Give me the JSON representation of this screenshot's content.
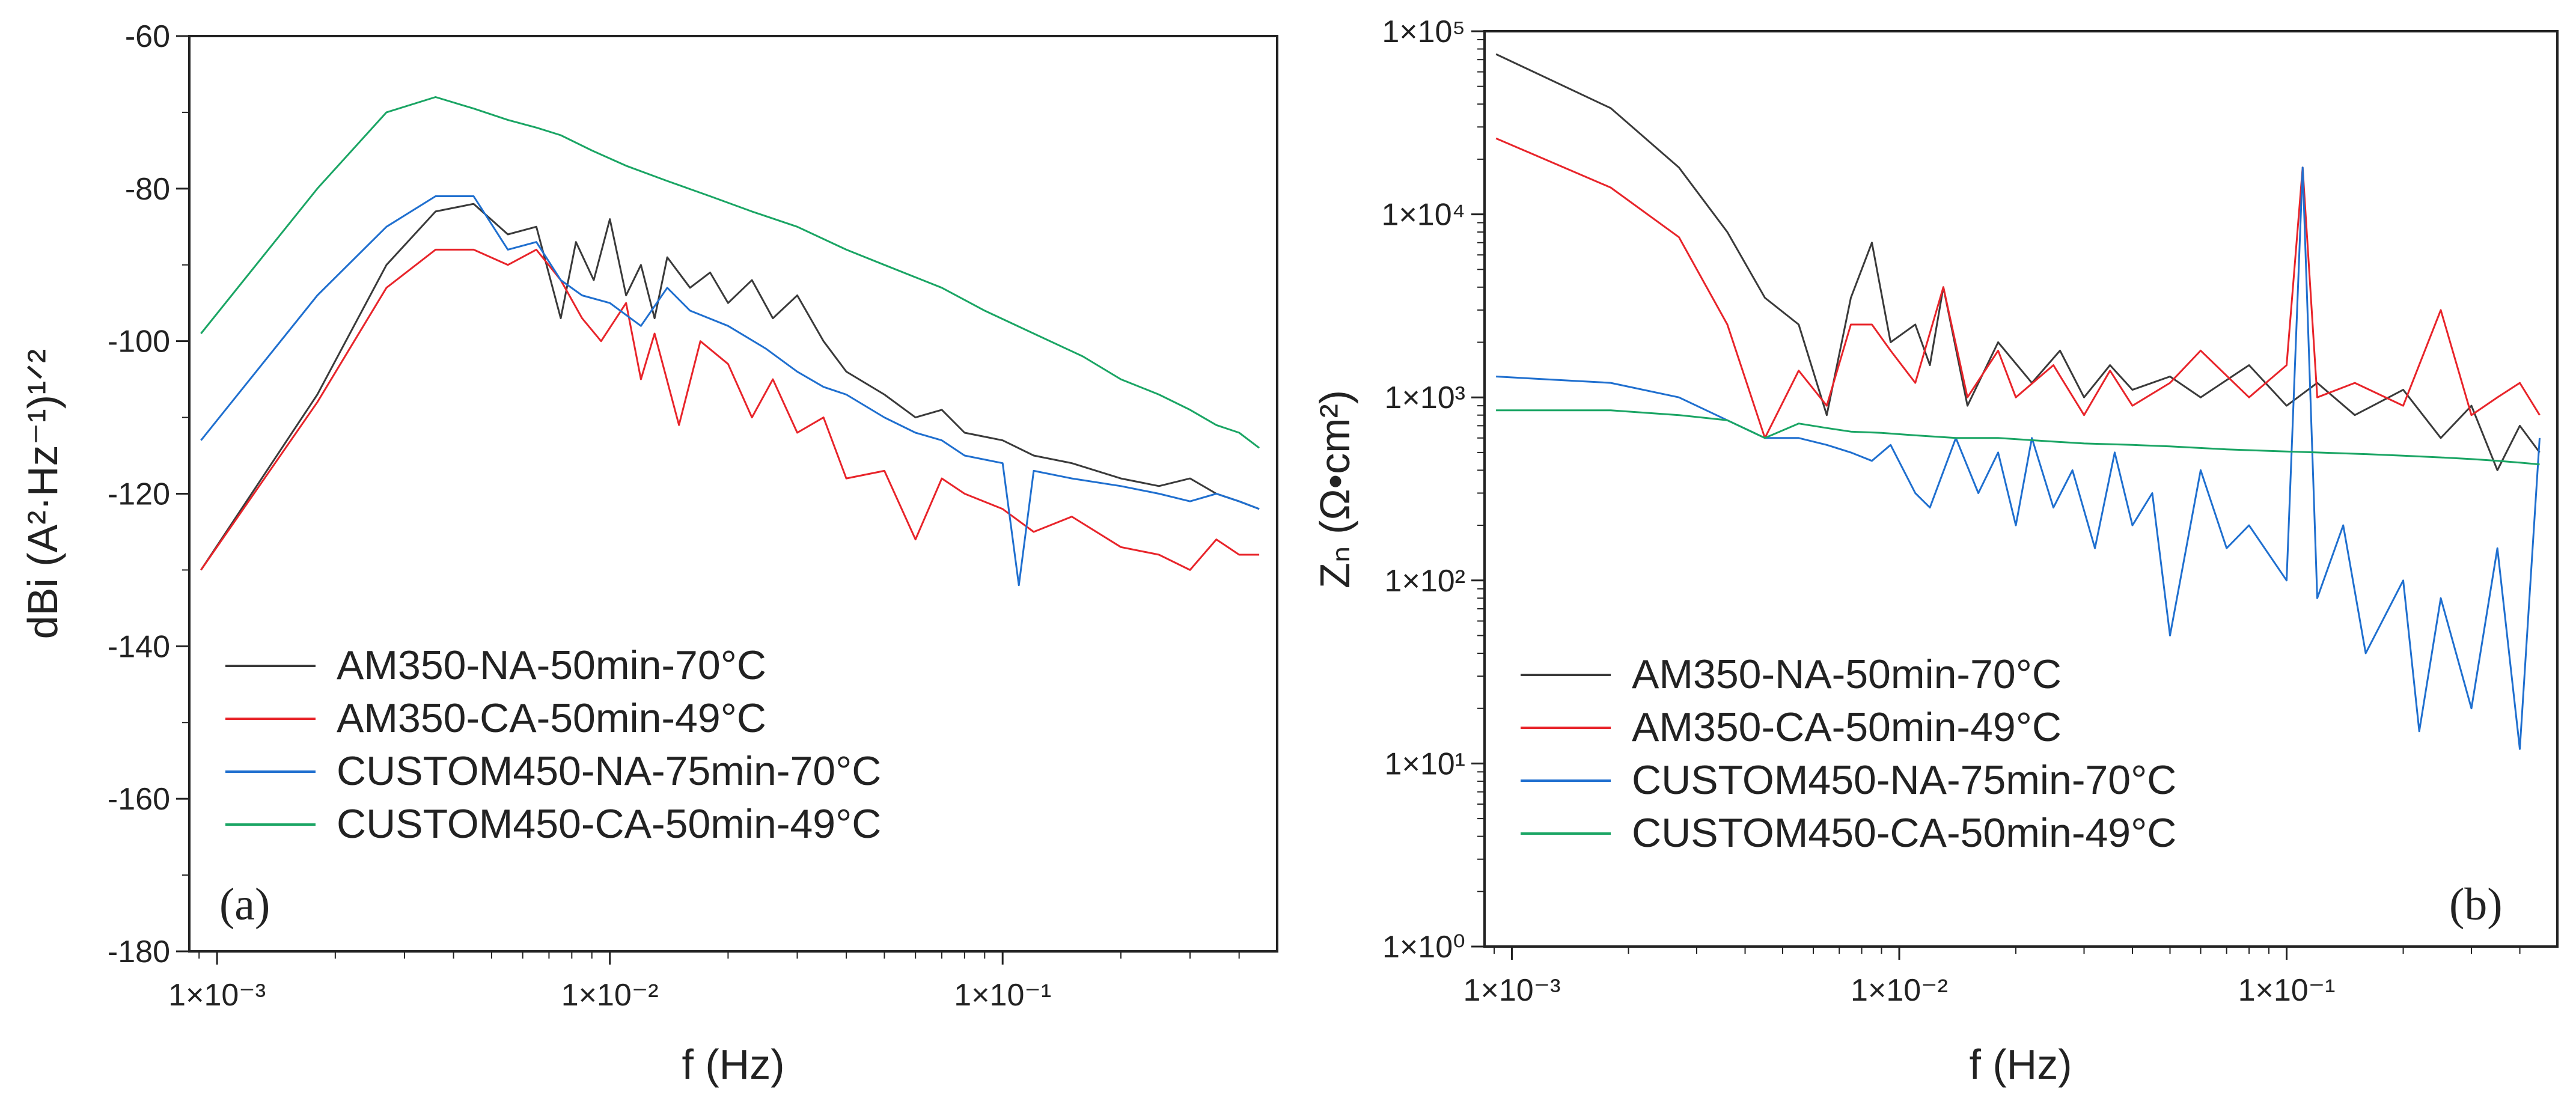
{
  "colors": {
    "AM350-NA-50min-70°C": "#3a3a3a",
    "AM350-CA-50min-49°C": "#e8242a",
    "CUSTOM450-NA-75min-70°C": "#1f6fcf",
    "CUSTOM450-CA-50min-49°C": "#1aa564"
  },
  "chart_data": [
    {
      "type": "line",
      "panel_label": "(a)",
      "xlabel": "f (Hz)",
      "ylabel": "dBi (A²·Hz⁻¹)¹ᐟ²",
      "xscale": "log",
      "xlim": [
        0.00085,
        0.5
      ],
      "ylim": [
        -180,
        -60
      ],
      "x_ticks": [
        0.001,
        0.01,
        0.1
      ],
      "x_tick_labels": [
        "1×10⁻³",
        "1×10⁻²",
        "1×10⁻¹"
      ],
      "y_ticks": [
        -180,
        -160,
        -140,
        -120,
        -100,
        -80,
        -60
      ],
      "y_tick_labels": [
        "-180",
        "-160",
        "-140",
        "-120",
        "-100",
        "-80",
        "-60"
      ],
      "legend_position": "bottom-left",
      "series": [
        {
          "name": "AM350-NA-50min-70°C",
          "x": [
            0.00091,
            0.0018,
            0.0027,
            0.0036,
            0.0045,
            0.0055,
            0.0065,
            0.0075,
            0.0082,
            0.0091,
            0.01,
            0.011,
            0.012,
            0.013,
            0.014,
            0.016,
            0.018,
            0.02,
            0.023,
            0.026,
            0.03,
            0.035,
            0.04,
            0.05,
            0.06,
            0.07,
            0.08,
            0.1,
            0.12,
            0.15,
            0.2,
            0.25,
            0.3,
            0.35,
            0.4,
            0.45
          ],
          "y": [
            -130,
            -107,
            -90,
            -83,
            -82,
            -86,
            -85,
            -97,
            -87,
            -92,
            -84,
            -94,
            -90,
            -97,
            -89,
            -93,
            -91,
            -95,
            -92,
            -97,
            -94,
            -100,
            -104,
            -107,
            -110,
            -109,
            -112,
            -113,
            -115,
            -116,
            -118,
            -119,
            -118,
            -120,
            -121,
            -122
          ]
        },
        {
          "name": "AM350-CA-50min-49°C",
          "x": [
            0.00091,
            0.0018,
            0.0027,
            0.0036,
            0.0045,
            0.0055,
            0.0065,
            0.0075,
            0.0085,
            0.0095,
            0.011,
            0.012,
            0.013,
            0.015,
            0.017,
            0.02,
            0.023,
            0.026,
            0.03,
            0.035,
            0.04,
            0.05,
            0.06,
            0.07,
            0.08,
            0.1,
            0.12,
            0.15,
            0.2,
            0.25,
            0.3,
            0.35,
            0.4,
            0.45
          ],
          "y": [
            -130,
            -108,
            -93,
            -88,
            -88,
            -90,
            -88,
            -92,
            -97,
            -100,
            -95,
            -105,
            -99,
            -111,
            -100,
            -103,
            -110,
            -105,
            -112,
            -110,
            -118,
            -117,
            -126,
            -118,
            -120,
            -122,
            -125,
            -123,
            -127,
            -128,
            -130,
            -126,
            -128,
            -128
          ]
        },
        {
          "name": "CUSTOM450-NA-75min-70°C",
          "x": [
            0.00091,
            0.0018,
            0.0027,
            0.0036,
            0.0045,
            0.0055,
            0.0065,
            0.0075,
            0.0085,
            0.01,
            0.012,
            0.014,
            0.016,
            0.02,
            0.025,
            0.03,
            0.035,
            0.04,
            0.05,
            0.06,
            0.07,
            0.08,
            0.1,
            0.11,
            0.12,
            0.15,
            0.2,
            0.25,
            0.3,
            0.35,
            0.4,
            0.45
          ],
          "y": [
            -113,
            -94,
            -85,
            -81,
            -81,
            -88,
            -87,
            -92,
            -94,
            -95,
            -98,
            -93,
            -96,
            -98,
            -101,
            -104,
            -106,
            -107,
            -110,
            -112,
            -113,
            -115,
            -116,
            -132,
            -117,
            -118,
            -119,
            -120,
            -121,
            -120,
            -121,
            -122
          ]
        },
        {
          "name": "CUSTOM450-CA-50min-49°C",
          "x": [
            0.00091,
            0.0018,
            0.0027,
            0.0036,
            0.0045,
            0.0055,
            0.0065,
            0.0075,
            0.009,
            0.011,
            0.014,
            0.018,
            0.023,
            0.03,
            0.04,
            0.05,
            0.07,
            0.09,
            0.12,
            0.16,
            0.2,
            0.25,
            0.3,
            0.35,
            0.4,
            0.45
          ],
          "y": [
            -99,
            -80,
            -70,
            -68,
            -69.5,
            -71,
            -72,
            -73,
            -75,
            -77,
            -79,
            -81,
            -83,
            -85,
            -88,
            -90,
            -93,
            -96,
            -99,
            -102,
            -105,
            -107,
            -109,
            -111,
            -112,
            -114
          ]
        }
      ]
    },
    {
      "type": "line",
      "panel_label": "(b)",
      "xlabel": "f (Hz)",
      "ylabel": "Zₙ (Ω•cm²)",
      "xscale": "log",
      "yscale": "log",
      "xlim": [
        0.00085,
        0.5
      ],
      "ylim": [
        1,
        100000
      ],
      "x_ticks": [
        0.001,
        0.01,
        0.1
      ],
      "x_tick_labels": [
        "1×10⁻³",
        "1×10⁻²",
        "1×10⁻¹"
      ],
      "y_ticks": [
        1,
        10,
        100,
        1000,
        10000,
        100000
      ],
      "y_tick_labels": [
        "1×10⁰",
        "1×10¹",
        "1×10²",
        "1×10³",
        "1×10⁴",
        "1×10⁵"
      ],
      "legend_position": "bottom-left",
      "series": [
        {
          "name": "AM350-NA-50min-70°C",
          "x": [
            0.00091,
            0.0018,
            0.0027,
            0.0036,
            0.0045,
            0.0055,
            0.0065,
            0.0075,
            0.0085,
            0.0095,
            0.011,
            0.012,
            0.013,
            0.015,
            0.018,
            0.022,
            0.026,
            0.03,
            0.035,
            0.04,
            0.05,
            0.06,
            0.08,
            0.1,
            0.12,
            0.15,
            0.2,
            0.25,
            0.3,
            0.35,
            0.4,
            0.45
          ],
          "y": [
            75000,
            38000,
            18000,
            8000,
            3500,
            2500,
            800,
            3500,
            7000,
            2000,
            2500,
            1500,
            4000,
            900,
            2000,
            1200,
            1800,
            1000,
            1500,
            1100,
            1300,
            1000,
            1500,
            900,
            1200,
            800,
            1100,
            600,
            900,
            400,
            700,
            500
          ]
        },
        {
          "name": "AM350-CA-50min-49°C",
          "x": [
            0.00091,
            0.0018,
            0.0027,
            0.0036,
            0.0045,
            0.0055,
            0.0065,
            0.0075,
            0.0085,
            0.0095,
            0.011,
            0.013,
            0.015,
            0.018,
            0.02,
            0.025,
            0.03,
            0.035,
            0.04,
            0.05,
            0.06,
            0.08,
            0.1,
            0.11,
            0.12,
            0.15,
            0.2,
            0.25,
            0.3,
            0.35,
            0.4,
            0.45
          ],
          "y": [
            26000,
            14000,
            7500,
            2500,
            600,
            1400,
            900,
            2500,
            2500,
            1800,
            1200,
            4000,
            1000,
            1800,
            1000,
            1500,
            800,
            1400,
            900,
            1200,
            1800,
            1000,
            1500,
            18000,
            1000,
            1200,
            900,
            3000,
            800,
            1000,
            1200,
            800
          ]
        },
        {
          "name": "CUSTOM450-NA-75min-70°C",
          "x": [
            0.00091,
            0.0018,
            0.0027,
            0.0036,
            0.0045,
            0.0055,
            0.0065,
            0.0075,
            0.0085,
            0.0095,
            0.011,
            0.012,
            0.014,
            0.016,
            0.018,
            0.02,
            0.022,
            0.025,
            0.028,
            0.032,
            0.036,
            0.04,
            0.045,
            0.05,
            0.06,
            0.07,
            0.08,
            0.1,
            0.11,
            0.12,
            0.14,
            0.16,
            0.2,
            0.22,
            0.25,
            0.3,
            0.35,
            0.4,
            0.45
          ],
          "y": [
            1300,
            1200,
            1000,
            750,
            600,
            600,
            550,
            500,
            450,
            550,
            300,
            250,
            600,
            300,
            500,
            200,
            600,
            250,
            400,
            150,
            500,
            200,
            300,
            50,
            400,
            150,
            200,
            100,
            18000,
            80,
            200,
            40,
            100,
            15,
            80,
            20,
            150,
            12,
            600
          ]
        },
        {
          "name": "CUSTOM450-CA-50min-49°C",
          "x": [
            0.00091,
            0.0018,
            0.0027,
            0.0036,
            0.0045,
            0.0055,
            0.0065,
            0.0075,
            0.009,
            0.011,
            0.014,
            0.018,
            0.023,
            0.03,
            0.04,
            0.05,
            0.07,
            0.09,
            0.12,
            0.16,
            0.2,
            0.25,
            0.3,
            0.35,
            0.4,
            0.45
          ],
          "y": [
            850,
            850,
            800,
            750,
            600,
            720,
            680,
            650,
            640,
            620,
            600,
            600,
            580,
            560,
            550,
            540,
            520,
            510,
            500,
            490,
            480,
            470,
            460,
            450,
            440,
            430
          ]
        }
      ]
    }
  ]
}
